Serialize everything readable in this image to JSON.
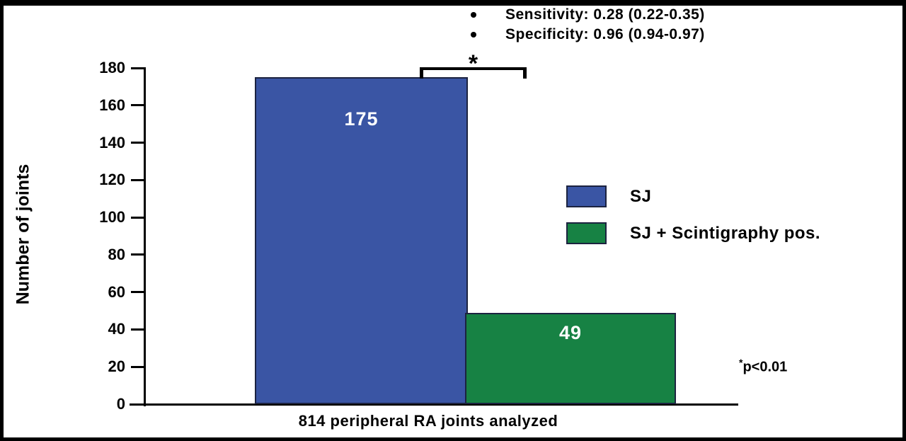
{
  "bullets": [
    "Sensitivity: 0.28 (0.22-0.35)",
    "Specificity: 0.96 (0.94-0.97)"
  ],
  "chart_data": {
    "type": "bar",
    "categories": [
      "SJ",
      "SJ + Scintigraphy pos."
    ],
    "values": [
      175,
      49
    ],
    "series": [
      {
        "name": "SJ",
        "value": 175,
        "label": "175",
        "color": "#3a55a4"
      },
      {
        "name": "SJ + Scintigraphy pos.",
        "value": 49,
        "label": "49",
        "color": "#178244"
      }
    ],
    "title": "",
    "xlabel": "814 peripheral RA joints analyzed",
    "ylabel": "Number of joints",
    "ylim": [
      0,
      180
    ],
    "yticks": [
      0,
      20,
      40,
      60,
      80,
      100,
      120,
      140,
      160,
      180
    ],
    "grid": false,
    "legend_position": "right",
    "annotations": {
      "significance_marker": "*",
      "significance_note": "*p<0.01",
      "header_bullets": [
        "Sensitivity: 0.28 (0.22-0.35)",
        "Specificity: 0.96 (0.94-0.97)"
      ]
    }
  },
  "legend": {
    "items": [
      {
        "label": "SJ",
        "color": "#3a55a4"
      },
      {
        "label": "SJ + Scintigraphy pos.",
        "color": "#178244"
      }
    ]
  },
  "significance": {
    "marker": "*"
  },
  "footnote": {
    "star": "*",
    "text": "p<0.01"
  },
  "colors": {
    "bar_blue": "#3a55a4",
    "bar_green": "#178244",
    "bar_border": "#1c2340",
    "axis": "#000000",
    "background": "#ffffff"
  }
}
